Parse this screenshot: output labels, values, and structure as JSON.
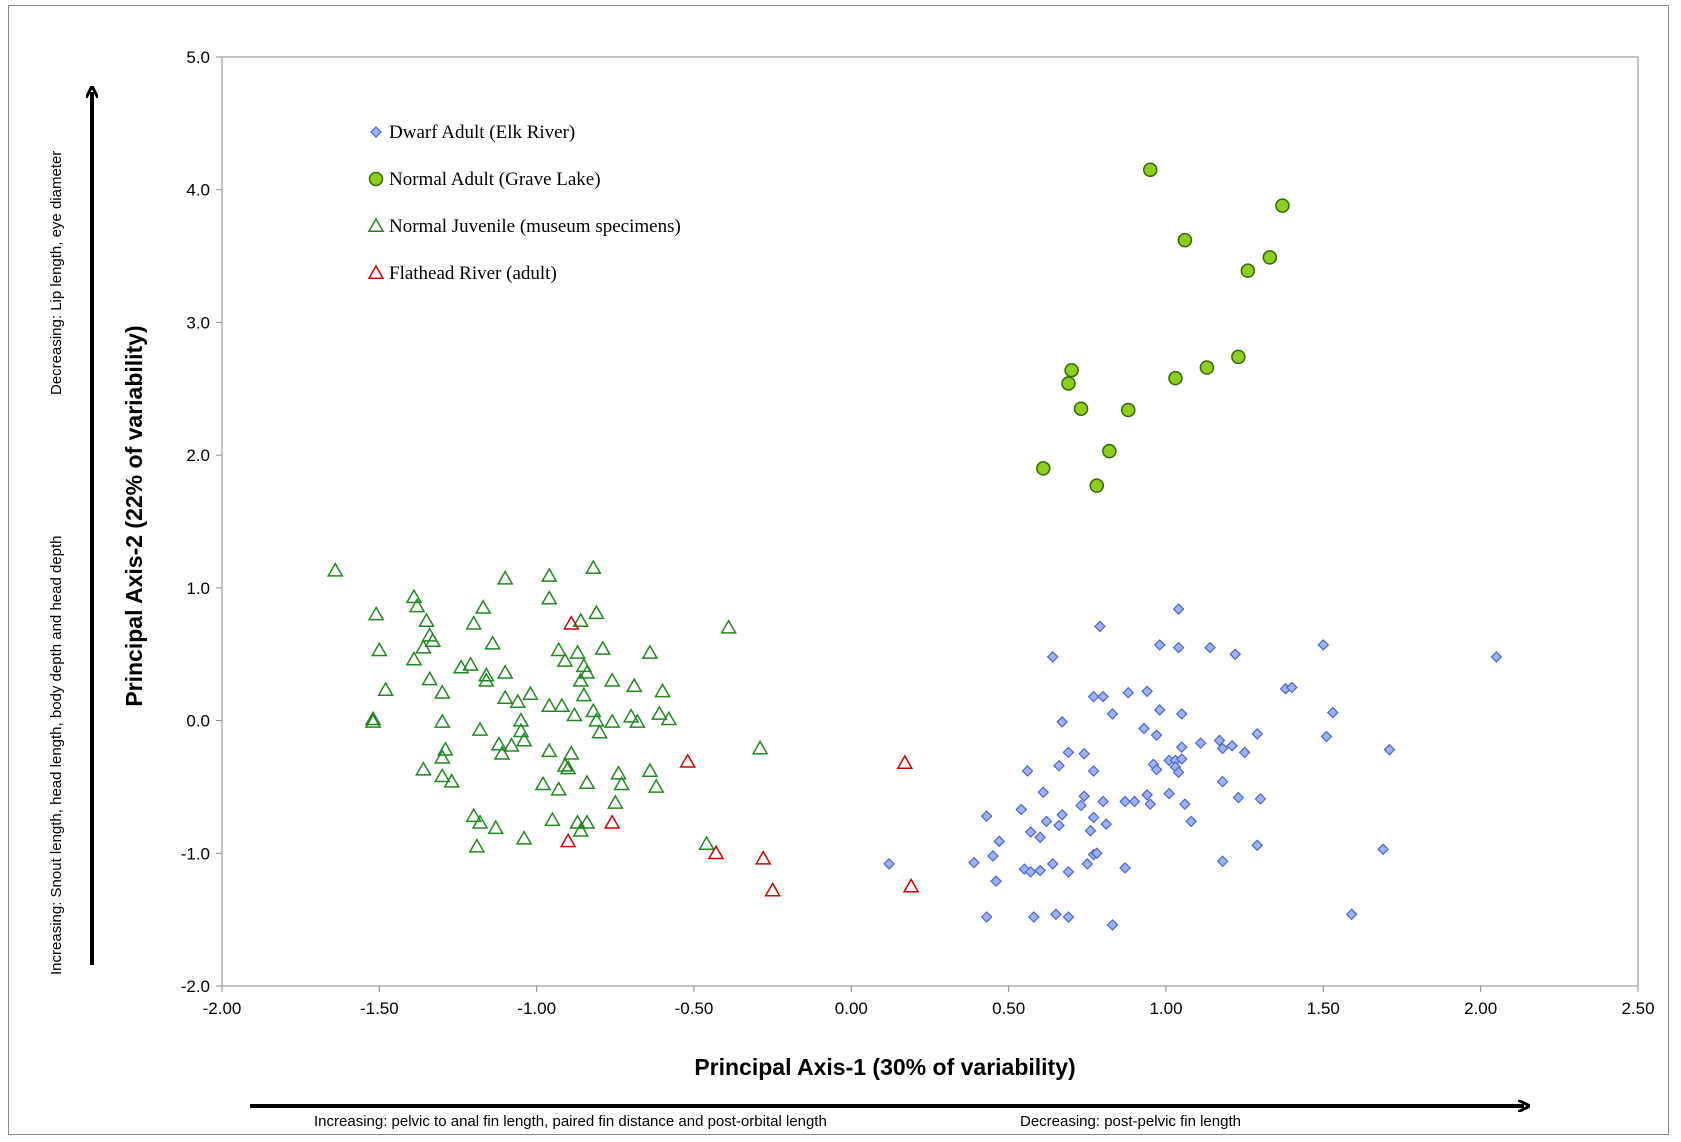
{
  "chart_data": {
    "type": "scatter",
    "xlabel": "Principal Axis-1 (30% of variability)",
    "ylabel": "Principal Axis-2 (22% of variability)",
    "xlim": [
      -2.0,
      2.5
    ],
    "ylim": [
      -2.0,
      5.0
    ],
    "x_ticks": [
      "-2.00",
      "-1.50",
      "-1.00",
      "-0.50",
      "0.00",
      "0.50",
      "1.00",
      "1.50",
      "2.00",
      "2.50"
    ],
    "y_ticks": [
      "-2.0",
      "-1.0",
      "0.0",
      "1.0",
      "2.0",
      "3.0",
      "4.0",
      "5.0"
    ],
    "grid": false,
    "legend_position": "top-left",
    "x_annotation_left": "Increasing: pelvic to anal fin length, paired fin distance and post-orbital length",
    "x_annotation_right": "Decreasing: post-pelvic fin length",
    "y_annotation_low": "Increasing:  Snout length, head length, body depth and head depth",
    "y_annotation_high": "Decreasing: Lip length, eye diameter",
    "series": [
      {
        "name": "Dwarf Adult (Elk River)",
        "marker": "diamond",
        "color": "#4a64d6",
        "fill": "#9db3f2",
        "points": [
          [
            0.12,
            -1.08
          ],
          [
            0.39,
            -1.07
          ],
          [
            0.43,
            -0.72
          ],
          [
            0.43,
            -1.48
          ],
          [
            0.45,
            -1.02
          ],
          [
            0.46,
            -1.21
          ],
          [
            0.47,
            -0.91
          ],
          [
            0.54,
            -0.67
          ],
          [
            0.55,
            -1.12
          ],
          [
            0.56,
            -0.38
          ],
          [
            0.57,
            -1.14
          ],
          [
            0.57,
            -0.84
          ],
          [
            0.58,
            -1.48
          ],
          [
            0.6,
            -0.88
          ],
          [
            0.6,
            -1.13
          ],
          [
            0.61,
            -0.54
          ],
          [
            0.62,
            -0.76
          ],
          [
            0.64,
            0.48
          ],
          [
            0.64,
            -1.08
          ],
          [
            0.65,
            -1.46
          ],
          [
            0.66,
            -0.79
          ],
          [
            0.66,
            -0.34
          ],
          [
            0.67,
            -0.71
          ],
          [
            0.67,
            -0.01
          ],
          [
            0.69,
            -1.14
          ],
          [
            0.69,
            -0.24
          ],
          [
            0.69,
            -1.48
          ],
          [
            0.73,
            -0.64
          ],
          [
            0.74,
            -0.25
          ],
          [
            0.74,
            -0.57
          ],
          [
            0.75,
            -1.08
          ],
          [
            0.76,
            -0.83
          ],
          [
            0.77,
            -1.01
          ],
          [
            0.77,
            -0.73
          ],
          [
            0.77,
            -0.38
          ],
          [
            0.78,
            -1.0
          ],
          [
            0.77,
            0.18
          ],
          [
            0.79,
            0.71
          ],
          [
            0.8,
            0.18
          ],
          [
            0.8,
            -0.61
          ],
          [
            0.81,
            -0.78
          ],
          [
            0.83,
            -1.54
          ],
          [
            0.83,
            0.05
          ],
          [
            0.87,
            -1.11
          ],
          [
            0.87,
            -0.61
          ],
          [
            0.88,
            0.21
          ],
          [
            0.9,
            -0.61
          ],
          [
            0.93,
            -0.06
          ],
          [
            0.94,
            0.22
          ],
          [
            0.94,
            -0.56
          ],
          [
            0.95,
            -0.63
          ],
          [
            0.96,
            -0.33
          ],
          [
            0.97,
            -0.11
          ],
          [
            0.97,
            -0.37
          ],
          [
            0.98,
            0.57
          ],
          [
            0.98,
            0.08
          ],
          [
            1.01,
            -0.3
          ],
          [
            1.01,
            -0.55
          ],
          [
            1.03,
            -0.3
          ],
          [
            1.03,
            -0.35
          ],
          [
            1.04,
            0.84
          ],
          [
            1.04,
            0.55
          ],
          [
            1.04,
            -0.39
          ],
          [
            1.05,
            -0.29
          ],
          [
            1.05,
            0.05
          ],
          [
            1.05,
            -0.2
          ],
          [
            1.06,
            -0.63
          ],
          [
            1.08,
            -0.76
          ],
          [
            1.11,
            -0.17
          ],
          [
            1.14,
            0.55
          ],
          [
            1.17,
            -0.15
          ],
          [
            1.18,
            -0.21
          ],
          [
            1.18,
            -1.06
          ],
          [
            1.18,
            -0.46
          ],
          [
            1.21,
            -0.19
          ],
          [
            1.22,
            0.5
          ],
          [
            1.23,
            -0.58
          ],
          [
            1.25,
            -0.24
          ],
          [
            1.29,
            -0.1
          ],
          [
            1.29,
            -0.94
          ],
          [
            1.3,
            -0.59
          ],
          [
            1.38,
            0.24
          ],
          [
            1.4,
            0.25
          ],
          [
            1.5,
            0.57
          ],
          [
            1.51,
            -0.12
          ],
          [
            1.53,
            0.06
          ],
          [
            1.59,
            -1.46
          ],
          [
            1.69,
            -0.97
          ],
          [
            1.71,
            -0.22
          ],
          [
            2.05,
            0.48
          ]
        ]
      },
      {
        "name": "Normal Adult (Grave Lake)",
        "marker": "circle",
        "color": "#2f6a00",
        "fill": "#8ccf1e",
        "points": [
          [
            0.61,
            1.9
          ],
          [
            0.69,
            2.54
          ],
          [
            0.7,
            2.64
          ],
          [
            0.73,
            2.35
          ],
          [
            0.78,
            1.77
          ],
          [
            0.82,
            2.03
          ],
          [
            0.88,
            2.34
          ],
          [
            0.95,
            4.15
          ],
          [
            1.03,
            2.58
          ],
          [
            1.06,
            3.62
          ],
          [
            1.13,
            2.66
          ],
          [
            1.23,
            2.74
          ],
          [
            1.26,
            3.39
          ],
          [
            1.33,
            3.49
          ],
          [
            1.37,
            3.88
          ]
        ]
      },
      {
        "name": "Normal Juvenile (museum specimens)",
        "marker": "triangle",
        "color": "#1e8a1e",
        "fill": "none",
        "points": [
          [
            -1.64,
            1.13
          ],
          [
            -1.52,
            0.01
          ],
          [
            -1.52,
            -0.01
          ],
          [
            -1.51,
            0.8
          ],
          [
            -1.5,
            0.53
          ],
          [
            -1.48,
            0.23
          ],
          [
            -1.39,
            0.93
          ],
          [
            -1.38,
            0.86
          ],
          [
            -1.39,
            0.46
          ],
          [
            -1.36,
            -0.37
          ],
          [
            -1.36,
            0.55
          ],
          [
            -1.35,
            0.75
          ],
          [
            -1.34,
            0.64
          ],
          [
            -1.34,
            0.31
          ],
          [
            -1.33,
            0.6
          ],
          [
            -1.3,
            0.21
          ],
          [
            -1.3,
            -0.01
          ],
          [
            -1.29,
            -0.22
          ],
          [
            -1.3,
            -0.28
          ],
          [
            -1.3,
            -0.42
          ],
          [
            -1.27,
            -0.46
          ],
          [
            -1.24,
            0.4
          ],
          [
            -1.21,
            0.42
          ],
          [
            -1.2,
            0.73
          ],
          [
            -1.2,
            -0.72
          ],
          [
            -1.19,
            -0.95
          ],
          [
            -1.18,
            -0.77
          ],
          [
            -1.18,
            -0.07
          ],
          [
            -1.16,
            0.34
          ],
          [
            -1.17,
            0.85
          ],
          [
            -1.16,
            0.3
          ],
          [
            -1.14,
            0.58
          ],
          [
            -1.13,
            -0.81
          ],
          [
            -1.12,
            -0.18
          ],
          [
            -1.11,
            -0.25
          ],
          [
            -1.1,
            0.17
          ],
          [
            -1.1,
            0.36
          ],
          [
            -1.1,
            1.07
          ],
          [
            -1.08,
            -0.19
          ],
          [
            -1.06,
            0.14
          ],
          [
            -1.05,
            0.0
          ],
          [
            -1.05,
            -0.08
          ],
          [
            -1.04,
            -0.89
          ],
          [
            -1.04,
            -0.15
          ],
          [
            -1.02,
            0.2
          ],
          [
            -0.98,
            -0.48
          ],
          [
            -0.96,
            0.11
          ],
          [
            -0.96,
            1.09
          ],
          [
            -0.96,
            0.92
          ],
          [
            -0.96,
            -0.23
          ],
          [
            -0.95,
            -0.75
          ],
          [
            -0.93,
            -0.52
          ],
          [
            -0.93,
            0.53
          ],
          [
            -0.92,
            0.11
          ],
          [
            -0.91,
            -0.34
          ],
          [
            -0.91,
            0.45
          ],
          [
            -0.9,
            -0.36
          ],
          [
            -0.89,
            -0.25
          ],
          [
            -0.88,
            0.04
          ],
          [
            -0.87,
            -0.77
          ],
          [
            -0.87,
            0.51
          ],
          [
            -0.86,
            -0.83
          ],
          [
            -0.86,
            0.3
          ],
          [
            -0.86,
            0.75
          ],
          [
            -0.85,
            0.19
          ],
          [
            -0.85,
            0.41
          ],
          [
            -0.84,
            0.36
          ],
          [
            -0.84,
            -0.77
          ],
          [
            -0.84,
            -0.47
          ],
          [
            -0.82,
            1.15
          ],
          [
            -0.82,
            0.07
          ],
          [
            -0.81,
            0.81
          ],
          [
            -0.81,
            0.0
          ],
          [
            -0.8,
            -0.09
          ],
          [
            -0.79,
            0.54
          ],
          [
            -0.76,
            -0.01
          ],
          [
            -0.76,
            0.3
          ],
          [
            -0.75,
            -0.62
          ],
          [
            -0.74,
            -0.4
          ],
          [
            -0.73,
            -0.48
          ],
          [
            -0.7,
            0.03
          ],
          [
            -0.69,
            0.26
          ],
          [
            -0.68,
            -0.01
          ],
          [
            -0.64,
            0.51
          ],
          [
            -0.64,
            -0.38
          ],
          [
            -0.62,
            -0.5
          ],
          [
            -0.61,
            0.05
          ],
          [
            -0.6,
            0.22
          ],
          [
            -0.58,
            0.01
          ],
          [
            -0.46,
            -0.93
          ],
          [
            -0.39,
            0.7
          ],
          [
            -0.29,
            -0.21
          ]
        ]
      },
      {
        "name": "Flathead River (adult)",
        "marker": "triangle",
        "color": "#d00000",
        "fill": "none",
        "points": [
          [
            -0.89,
            0.73
          ],
          [
            -0.9,
            -0.91
          ],
          [
            -0.76,
            -0.77
          ],
          [
            -0.52,
            -0.31
          ],
          [
            -0.43,
            -1.0
          ],
          [
            -0.28,
            -1.04
          ],
          [
            -0.25,
            -1.28
          ],
          [
            0.17,
            -0.32
          ],
          [
            0.19,
            -1.25
          ]
        ]
      }
    ]
  }
}
